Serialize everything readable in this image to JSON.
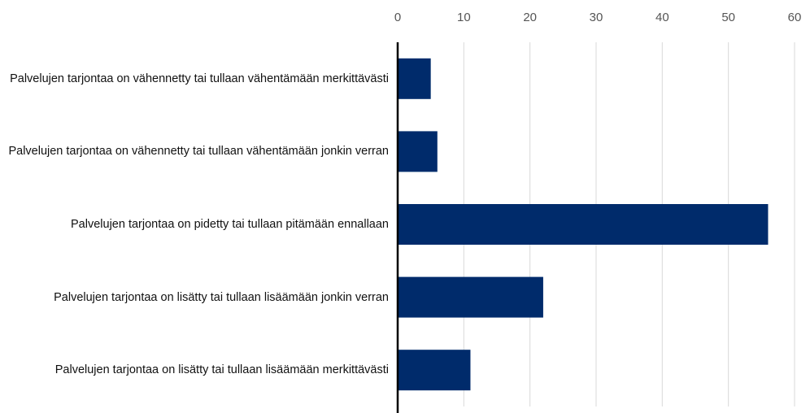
{
  "chart_data": {
    "type": "barh",
    "categories": [
      "Palvelujen tarjontaa on vähennetty tai tullaan vähentämään merkittävästi",
      "Palvelujen tarjontaa on vähennetty tai tullaan vähentämään jonkin verran",
      "Palvelujen tarjontaa on pidetty tai tullaan pitämään ennallaan",
      "Palvelujen tarjontaa on lisätty tai tullaan lisäämään jonkin verran",
      "Palvelujen tarjontaa on lisätty tai tullaan lisäämään merkittävästi"
    ],
    "values": [
      5,
      6,
      56,
      22,
      11
    ],
    "color": "#002b6b",
    "xlim": [
      0,
      60
    ],
    "xticks": [
      0,
      10,
      20,
      30,
      40,
      50,
      60
    ],
    "grid": true
  }
}
